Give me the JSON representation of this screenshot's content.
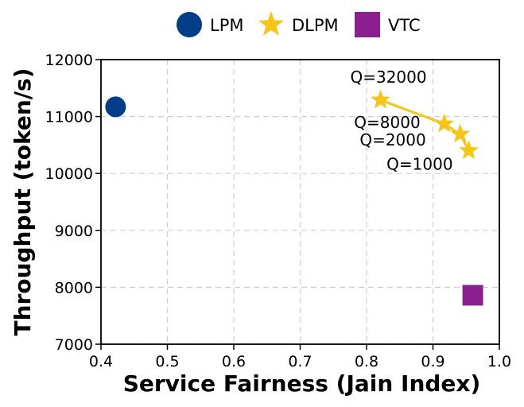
{
  "chart_data": {
    "type": "scatter",
    "xlabel": "Service Fairness (Jain Index)",
    "ylabel": "Throughput (token/s)",
    "xlim": [
      0.4,
      1.0
    ],
    "ylim": [
      7000,
      12000
    ],
    "xticks": [
      "0.4",
      "0.5",
      "0.6",
      "0.7",
      "0.8",
      "0.9",
      "1.0"
    ],
    "yticks": [
      "7000",
      "8000",
      "9000",
      "10000",
      "11000",
      "12000"
    ],
    "grid": true,
    "legend_position": "top-center",
    "series": [
      {
        "name": "LPM",
        "marker": "circle",
        "color": "#003f88",
        "points": [
          {
            "x": 0.422,
            "y": 11170
          }
        ]
      },
      {
        "name": "DLPM",
        "marker": "star",
        "color": "#f5c518",
        "line": true,
        "points": [
          {
            "x": 0.821,
            "y": 11290,
            "label": "Q=32000"
          },
          {
            "x": 0.917,
            "y": 10870,
            "label": "Q=8000"
          },
          {
            "x": 0.941,
            "y": 10690,
            "label": "Q=2000"
          },
          {
            "x": 0.954,
            "y": 10400,
            "label": "Q=1000"
          }
        ]
      },
      {
        "name": "VTC",
        "marker": "square",
        "color": "#8b1f8f",
        "points": [
          {
            "x": 0.96,
            "y": 7860
          }
        ]
      }
    ]
  }
}
